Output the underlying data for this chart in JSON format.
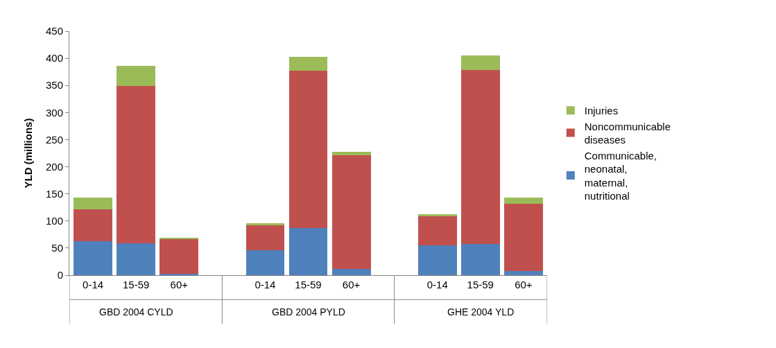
{
  "chart_data": {
    "type": "bar",
    "stacked": true,
    "ylabel": "YLD (millions)",
    "categories": [
      "0-14",
      "15-59",
      "60+",
      "0-14",
      "15-59",
      "60+",
      "0-14",
      "15-59",
      "60+"
    ],
    "series": [
      {
        "name": "Communicable, neonatal, maternal, nutritional",
        "color": "#4f81bd",
        "values": [
          63,
          59,
          3,
          46,
          87,
          11,
          55,
          57,
          8
        ]
      },
      {
        "name": "Noncommunicable diseases",
        "color": "#c0504d",
        "values": [
          59,
          290,
          64,
          46,
          290,
          210,
          54,
          321,
          124
        ]
      },
      {
        "name": "Injuries",
        "color": "#9bbb59",
        "values": [
          21,
          37,
          1,
          4,
          26,
          6,
          3,
          27,
          11
        ]
      }
    ],
    "annotations": [
      "GBD 2004 CYLD",
      "GBD 2004 PYLD",
      "GHE 2004 YLD"
    ],
    "ylim": [
      0,
      450
    ],
    "yticks": [
      0,
      50,
      100,
      150,
      200,
      250,
      300,
      350,
      400,
      450
    ],
    "legend": "right"
  }
}
